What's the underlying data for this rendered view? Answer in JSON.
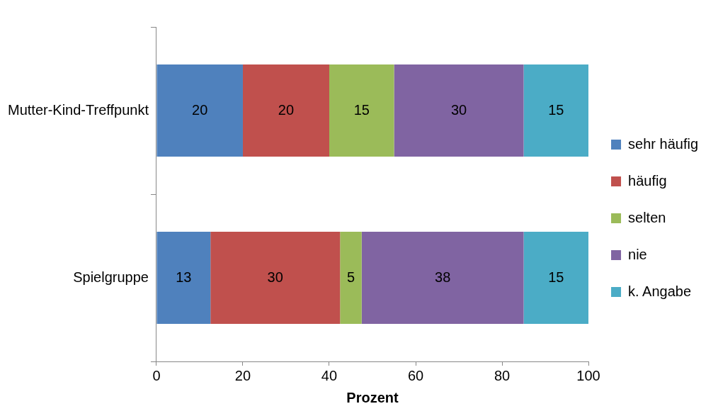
{
  "chart_data": {
    "type": "bar",
    "orientation": "horizontal",
    "stacked": true,
    "categories": [
      "Mutter-Kind-Treffpunkt",
      "Spielgruppe"
    ],
    "series": [
      {
        "name": "sehr häufig",
        "color": "#4f81bd",
        "values": [
          20,
          12.5
        ],
        "value_labels": [
          "20",
          "13"
        ]
      },
      {
        "name": "häufig",
        "color": "#c0504d",
        "values": [
          20,
          30
        ],
        "value_labels": [
          "20",
          "30"
        ]
      },
      {
        "name": "selten",
        "color": "#9bbb59",
        "values": [
          15,
          5
        ],
        "value_labels": [
          "15",
          "5"
        ]
      },
      {
        "name": "nie",
        "color": "#8064a2",
        "values": [
          30,
          37.5
        ],
        "value_labels": [
          "30",
          "38"
        ]
      },
      {
        "name": "k. Angabe",
        "color": "#4bacc6",
        "values": [
          15,
          15
        ],
        "value_labels": [
          "15",
          "15"
        ]
      }
    ],
    "xlim": [
      0,
      100
    ],
    "xticks": [
      0,
      20,
      40,
      60,
      80,
      100
    ],
    "xlabel": "Prozent",
    "grid": false,
    "legend": "right"
  }
}
